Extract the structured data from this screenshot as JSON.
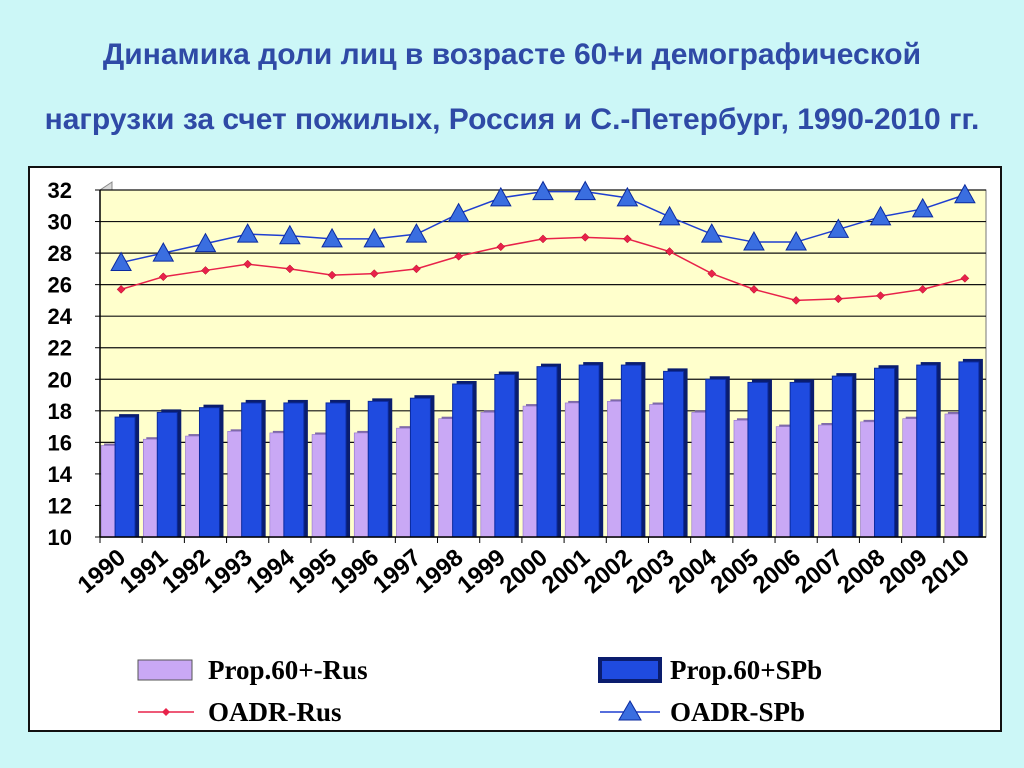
{
  "title_lines": [
    "Динамика доли  лиц в возрасте 60+и демографической",
    "нагрузки за счет пожилых, Россия и С.-Петербург, 1990-2010 гг."
  ],
  "colors": {
    "background": "#ccf7f7",
    "title": "#2f4aa6",
    "plot_area": "#ffffcc",
    "rus_bar": "#c9a8f5",
    "spb_bar": "#1f4be0",
    "oadr_rus_line": "#e8224a",
    "oadr_spb_line": "#1f3fd0",
    "oadr_spb_marker": "#3a6ee0"
  },
  "chart_data": {
    "type": "bar",
    "title": "Динамика доли  лиц в возрасте 60+и демографической нагрузки за счет пожилых, Россия и С.-Петербург, 1990-2010 гг.",
    "categories": [
      "1990",
      "1991",
      "1992",
      "1993",
      "1994",
      "1995",
      "1996",
      "1997",
      "1998",
      "1999",
      "2000",
      "2001",
      "2002",
      "2003",
      "2004",
      "2005",
      "2006",
      "2007",
      "2008",
      "2009",
      "2010"
    ],
    "ylim": [
      10,
      32
    ],
    "yticks": [
      10,
      12,
      14,
      16,
      18,
      20,
      22,
      24,
      26,
      28,
      30,
      32
    ],
    "grid": true,
    "legend_position": "bottom",
    "series": [
      {
        "name": "Prop.60+-Rus",
        "kind": "bar",
        "values": [
          15.8,
          16.2,
          16.4,
          16.7,
          16.6,
          16.5,
          16.6,
          16.9,
          17.5,
          17.9,
          18.3,
          18.5,
          18.6,
          18.4,
          17.9,
          17.4,
          17.0,
          17.1,
          17.3,
          17.5,
          17.8
        ]
      },
      {
        "name": "Prop.60+SPb",
        "kind": "bar",
        "values": [
          17.6,
          17.9,
          18.2,
          18.5,
          18.5,
          18.5,
          18.6,
          18.8,
          19.7,
          20.3,
          20.8,
          20.9,
          20.9,
          20.5,
          20.0,
          19.8,
          19.8,
          20.2,
          20.7,
          20.9,
          21.1
        ]
      },
      {
        "name": "OADR-Rus",
        "kind": "line",
        "marker": "diamond",
        "values": [
          25.7,
          26.5,
          26.9,
          27.3,
          27.0,
          26.6,
          26.7,
          27.0,
          27.8,
          28.4,
          28.9,
          29.0,
          28.9,
          28.1,
          26.7,
          25.7,
          25.0,
          25.1,
          25.3,
          25.7,
          26.4
        ]
      },
      {
        "name": "OADR-SPb",
        "kind": "line",
        "marker": "triangle",
        "values": [
          27.4,
          28.0,
          28.6,
          29.2,
          29.1,
          28.9,
          28.9,
          29.2,
          30.5,
          31.5,
          31.9,
          31.9,
          31.5,
          30.3,
          29.2,
          28.7,
          28.7,
          29.5,
          30.3,
          30.8,
          31.7
        ]
      }
    ]
  }
}
